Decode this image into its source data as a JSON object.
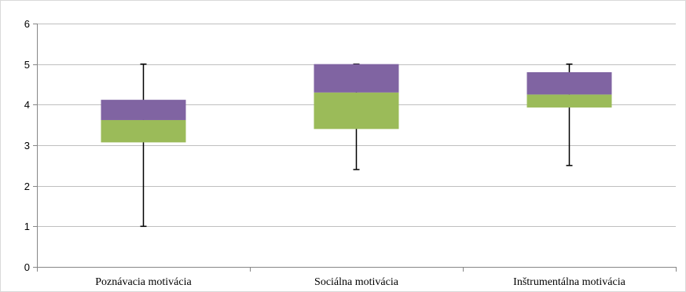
{
  "chart_data": {
    "type": "box",
    "title": "",
    "xlabel": "",
    "ylabel": "",
    "ylim": [
      0,
      6
    ],
    "yticks": [
      0,
      1,
      2,
      3,
      4,
      5,
      6
    ],
    "grid": true,
    "categories": [
      "Poznávacia motivácia",
      "Sociálna motivácia",
      "Inštrumentálna motivácia"
    ],
    "boxes": [
      {
        "min": 1.0,
        "q1": 3.07,
        "median": 3.62,
        "q3": 4.12,
        "max": 5.0
      },
      {
        "min": 2.4,
        "q1": 3.4,
        "median": 4.3,
        "q3": 5.0,
        "max": 5.0
      },
      {
        "min": 2.5,
        "q1": 3.93,
        "median": 4.25,
        "q3": 4.8,
        "max": 5.0
      }
    ],
    "colors": {
      "lower_box": "#9bbb59",
      "upper_box": "#8064a2",
      "whisker": "#000000",
      "grid": "#bfbfbf",
      "axis": "#868686"
    }
  }
}
